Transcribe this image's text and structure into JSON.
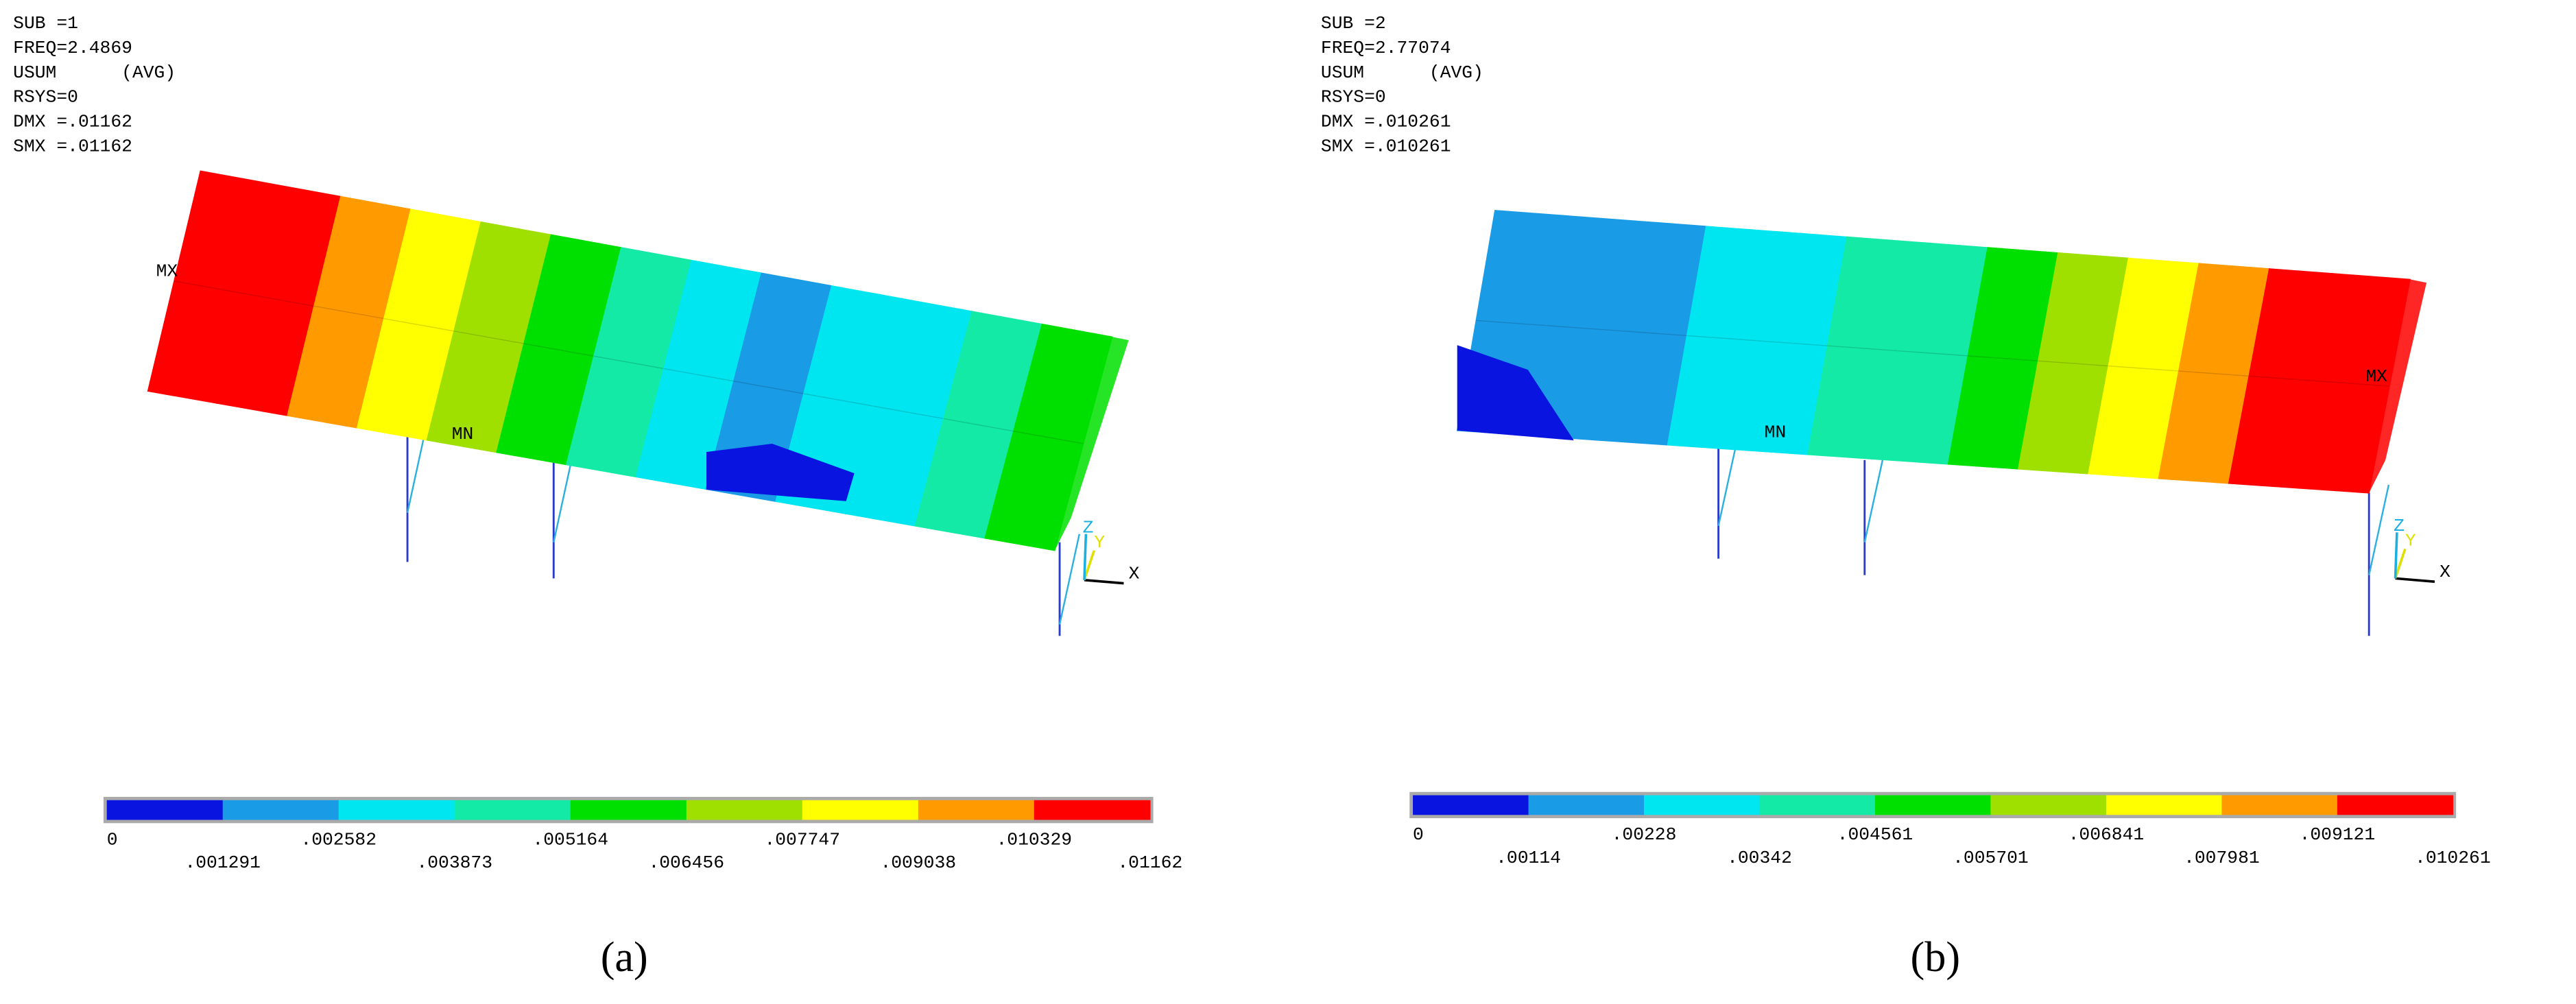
{
  "panels": [
    {
      "header": [
        "SUB =1",
        "FREQ=2.4869",
        "USUM      (AVG)",
        "RSYS=0",
        "DMX =.01162",
        "SMX =.01162"
      ],
      "legend": {
        "colors": [
          "#0a14e0",
          "#1a9be6",
          "#00e6f0",
          "#13eaa6",
          "#00e000",
          "#a0e000",
          "#ffff00",
          "#ff9b00",
          "#ff0000"
        ],
        "labels": [
          "0",
          ".001291",
          ".002582",
          ".003873",
          ".005164",
          ".006456",
          ".007747",
          ".009038",
          ".010329",
          ".01162"
        ]
      },
      "markers": {
        "max": "MX",
        "min": "MN"
      },
      "axes": [
        "X",
        "Y",
        "Z"
      ],
      "caption": "(a)"
    },
    {
      "header": [
        "SUB =2",
        "FREQ=2.77074",
        "USUM      (AVG)",
        "RSYS=0",
        "DMX =.010261",
        "SMX =.010261"
      ],
      "legend": {
        "colors": [
          "#0a14e0",
          "#1a9be6",
          "#00e6f0",
          "#13eaa6",
          "#00e000",
          "#a0e000",
          "#ffff00",
          "#ff9b00",
          "#ff0000"
        ],
        "labels": [
          "0",
          ".00114",
          ".00228",
          ".00342",
          ".004561",
          ".005701",
          ".006841",
          ".007981",
          ".009121",
          ".010261"
        ]
      },
      "markers": {
        "max": "MX",
        "min": "MN"
      },
      "axes": [
        "X",
        "Y",
        "Z"
      ],
      "caption": "(b)"
    }
  ]
}
